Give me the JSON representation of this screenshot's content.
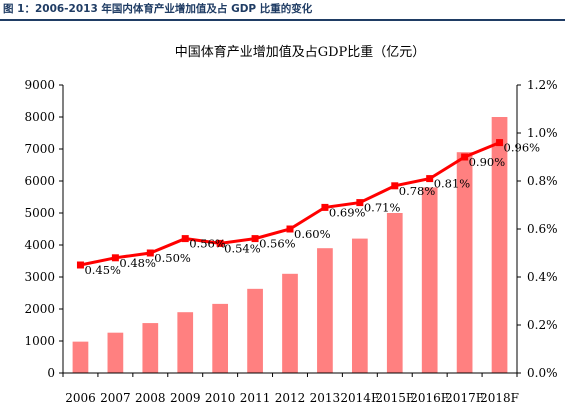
{
  "caption": "图 1：2006-2013 年国内体育产业增加值及占 GDP 比重的变化",
  "chart_data": {
    "type": "bar",
    "title": "中国体育产业增加值及占GDP比重（亿元）",
    "categories": [
      "2006",
      "2007",
      "2008",
      "2009",
      "2010",
      "2011",
      "2012",
      "2013",
      "2014F",
      "2015F",
      "2016F",
      "2017F",
      "2018F"
    ],
    "series": [
      {
        "type": "bar",
        "axis": "left",
        "values": [
          980,
          1260,
          1560,
          1900,
          2160,
          2630,
          3100,
          3900,
          4200,
          5000,
          5800,
          6900,
          8000
        ],
        "color": "#ff8080"
      },
      {
        "type": "line",
        "axis": "right",
        "values": [
          0.45,
          0.48,
          0.5,
          0.56,
          0.54,
          0.56,
          0.6,
          0.69,
          0.71,
          0.78,
          0.81,
          0.9,
          0.96
        ],
        "labels": [
          "0.45%",
          "0.48%",
          "0.50%",
          "0.56%",
          "0.54%",
          "0.56%",
          "0.60%",
          "0.69%",
          "0.71%",
          "0.78%",
          "0.81%",
          "0.90%",
          "0.96%"
        ],
        "color": "#ff0000"
      }
    ],
    "ylim_left": [
      0,
      9000
    ],
    "yticks_left": [
      "0",
      "1000",
      "2000",
      "3000",
      "4000",
      "5000",
      "6000",
      "7000",
      "8000",
      "9000"
    ],
    "ylim_right": [
      0,
      1.2
    ],
    "yticks_right": [
      "0.0%",
      "0.2%",
      "0.4%",
      "0.6%",
      "0.8%",
      "1.0%",
      "1.2%"
    ],
    "grid": false,
    "legend": "none"
  }
}
